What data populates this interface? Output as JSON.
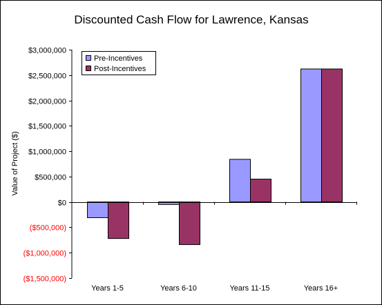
{
  "chart_data": {
    "type": "bar",
    "title": "Discounted Cash Flow for Lawrence, Kansas",
    "xlabel": "",
    "ylabel": "Value of Project ($)",
    "categories": [
      "Years 1-5",
      "Years 6-10",
      "Years 11-15",
      "Years 16+"
    ],
    "series": [
      {
        "name": "Pre-Incentives",
        "color": "#9999FF",
        "values": [
          -310000,
          -50000,
          840000,
          2620000
        ]
      },
      {
        "name": "Post-Incentives",
        "color": "#993366",
        "values": [
          -720000,
          -840000,
          450000,
          2620000
        ]
      }
    ],
    "ylim": [
      -1500000,
      3000000
    ],
    "y_ticks": [
      3000000,
      2500000,
      2000000,
      1500000,
      1000000,
      500000,
      0,
      -500000,
      -1000000,
      -1500000
    ],
    "y_tick_labels": [
      "$3,000,000",
      "$2,500,000",
      "$2,000,000",
      "$1,500,000",
      "$1,000,000",
      "$500,000",
      "$0",
      "($500,000)",
      "($1,000,000)",
      "($1,500,000)"
    ],
    "negative_label_color": "#FF0000",
    "grid": false,
    "legend_position": "top-left"
  }
}
